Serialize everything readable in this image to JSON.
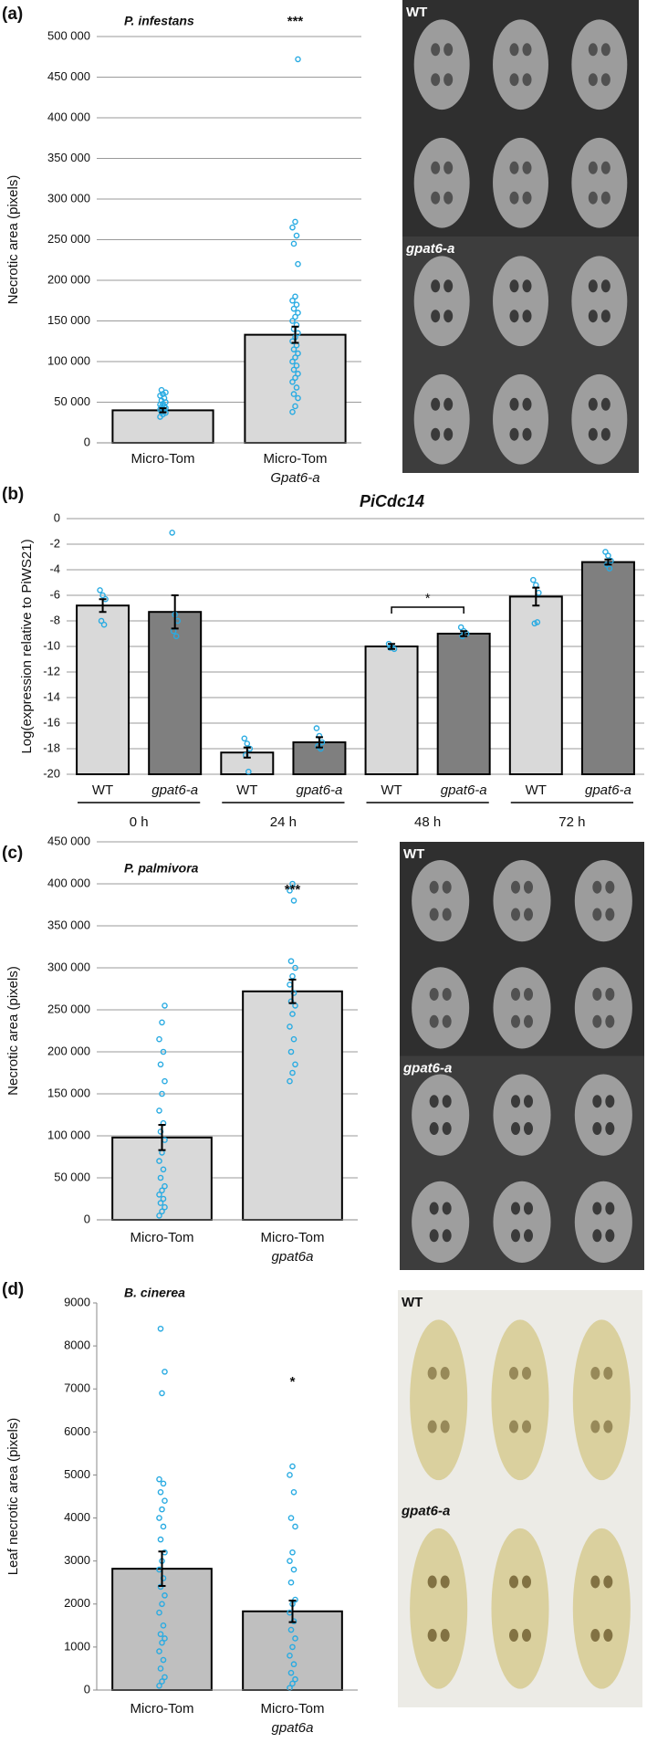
{
  "chart_data": [
    {
      "type": "bar",
      "panel_label": "(a)",
      "subtitle": "P. infestans",
      "annotation": "***",
      "y_label": "Necrotic area (pixels)",
      "categories": [
        [
          "Micro-Tom"
        ],
        [
          "Micro-Tom",
          "Gpat6-a"
        ]
      ],
      "values": [
        40000,
        133000
      ],
      "errors": [
        2500,
        10000
      ],
      "color": "#d9d9d9",
      "point_color": "#29abe2",
      "points": [
        [
          32000,
          35000,
          37000,
          38000,
          40000,
          41000,
          42000,
          43000,
          44000,
          45000,
          47000,
          48000,
          50000,
          52000,
          55000,
          58000,
          60000,
          62000,
          65000
        ],
        [
          38000,
          45000,
          55000,
          60000,
          68000,
          75000,
          80000,
          85000,
          90000,
          95000,
          100000,
          105000,
          110000,
          115000,
          120000,
          125000,
          130000,
          135000,
          140000,
          145000,
          150000,
          155000,
          160000,
          165000,
          170000,
          175000,
          180000,
          220000,
          245000,
          255000,
          265000,
          272000,
          472000
        ]
      ],
      "ylim": [
        0,
        500000
      ],
      "yticks": [
        0,
        {
          "value": 50000,
          "label": "50 000"
        },
        {
          "value": 100000,
          "label": "100 000"
        },
        {
          "value": 150000,
          "label": "150 000"
        },
        {
          "value": 200000,
          "label": "200 000"
        },
        {
          "value": 250000,
          "label": "250 000"
        },
        {
          "value": 300000,
          "label": "300 000"
        },
        {
          "value": 350000,
          "label": "350 000"
        },
        {
          "value": 400000,
          "label": "400 000"
        },
        {
          "value": 450000,
          "label": "450 000"
        },
        {
          "value": 500000,
          "label": "500 000"
        }
      ],
      "grid": true,
      "photo_labels": [
        "WT",
        "gpat6-a"
      ]
    },
    {
      "type": "grouped_bar",
      "panel_label": "(b)",
      "title": "PiCdc14",
      "annotation": "*",
      "y_label": "Log(expression relative to PiWS21)",
      "categories": [
        "0 h",
        "24 h",
        "48 h",
        "72 h"
      ],
      "series": [
        {
          "name": "WT",
          "color": "#d9d9d9",
          "values": [
            -6.8,
            -18.3,
            -10.0,
            -6.1
          ],
          "errors": [
            0.5,
            0.4,
            0.2,
            0.7
          ],
          "points": [
            [
              -5.6,
              -6.0,
              -6.3,
              -8.0,
              -8.3
            ],
            [
              -17.2,
              -17.6,
              -18.0,
              -18.5,
              -19.8
            ],
            [
              -9.8,
              -10.0,
              -10.2,
              -10.1
            ],
            [
              -4.8,
              -5.2,
              -5.8,
              -8.2,
              -8.1
            ]
          ]
        },
        {
          "name": "gpat6-a",
          "color": "#7f7f7f",
          "values": [
            -7.3,
            -17.5,
            -9.0,
            -3.4
          ],
          "errors": [
            1.3,
            0.4,
            0.2,
            0.2
          ],
          "points": [
            [
              -1.1,
              -7.5,
              -8.0,
              -8.8,
              -9.2
            ],
            [
              -16.4,
              -17.0,
              -17.5,
              -17.8,
              -18.0
            ],
            [
              -8.5,
              -8.8,
              -9.0,
              -9.2
            ],
            [
              -2.6,
              -2.9,
              -3.3,
              -3.6,
              -3.9
            ]
          ]
        }
      ],
      "point_color": "#29abe2",
      "ylim": [
        -20,
        0
      ],
      "yticks": [
        -20,
        -18,
        -16,
        -14,
        -12,
        -10,
        -8,
        -6,
        -4,
        -2,
        0
      ],
      "grid": true
    },
    {
      "type": "bar",
      "panel_label": "(c)",
      "subtitle": "P. palmivora",
      "annotation": "***",
      "y_label": "Necrotic area (pixels)",
      "categories": [
        [
          "Micro-Tom"
        ],
        [
          "Micro-Tom",
          "gpat6a"
        ]
      ],
      "values": [
        98000,
        272000
      ],
      "errors": [
        15000,
        14000
      ],
      "color": "#d9d9d9",
      "point_color": "#29abe2",
      "points": [
        [
          5000,
          10000,
          15000,
          20000,
          25000,
          30000,
          35000,
          40000,
          50000,
          60000,
          70000,
          80000,
          95000,
          105000,
          115000,
          130000,
          150000,
          165000,
          185000,
          200000,
          215000,
          235000,
          255000
        ],
        [
          165000,
          175000,
          185000,
          200000,
          215000,
          230000,
          245000,
          255000,
          260000,
          270000,
          280000,
          290000,
          300000,
          308000,
          380000,
          392000,
          400000
        ]
      ],
      "ylim": [
        0,
        450000
      ],
      "yticks": [
        0,
        {
          "value": 50000,
          "label": "50 000"
        },
        {
          "value": 100000,
          "label": "100 000"
        },
        {
          "value": 150000,
          "label": "150 000"
        },
        {
          "value": 200000,
          "label": "200 000"
        },
        {
          "value": 250000,
          "label": "250 000"
        },
        {
          "value": 300000,
          "label": "300 000"
        },
        {
          "value": 350000,
          "label": "350 000"
        },
        {
          "value": 400000,
          "label": "400 000"
        },
        {
          "value": 450000,
          "label": "450 000"
        }
      ],
      "grid": true,
      "photo_labels": [
        "WT",
        "gpat6-a"
      ]
    },
    {
      "type": "bar",
      "panel_label": "(d)",
      "subtitle": "B. cinerea",
      "annotation": "*",
      "y_label": "Leaf necrotic area (pixels)",
      "categories": [
        [
          "Micro-Tom"
        ],
        [
          "Micro-Tom",
          "gpat6a"
        ]
      ],
      "values": [
        2820,
        1830
      ],
      "errors": [
        400,
        250
      ],
      "color": "#bfbfbf",
      "point_color": "#29abe2",
      "points": [
        [
          100,
          200,
          300,
          500,
          700,
          900,
          1100,
          1200,
          1300,
          1500,
          1800,
          2000,
          2200,
          2400,
          2600,
          2800,
          3000,
          3200,
          3500,
          3800,
          4000,
          4200,
          4400,
          4600,
          4800,
          4900,
          6900,
          7400,
          8400
        ],
        [
          50,
          150,
          250,
          400,
          600,
          800,
          1000,
          1200,
          1400,
          1600,
          1800,
          2000,
          2100,
          2500,
          2800,
          3000,
          3200,
          3800,
          4000,
          4600,
          5000,
          5200
        ]
      ],
      "ylim": [
        0,
        9000
      ],
      "yticks": [
        0,
        1000,
        2000,
        3000,
        4000,
        5000,
        6000,
        7000,
        8000,
        9000
      ],
      "grid": false,
      "photo_labels": [
        "WT",
        "gpat6-a"
      ]
    }
  ]
}
